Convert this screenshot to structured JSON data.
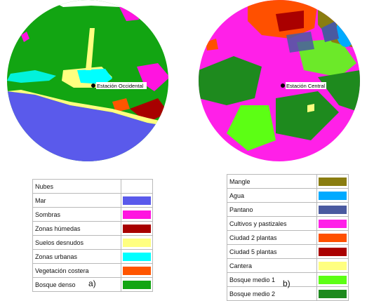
{
  "panel_a": {
    "caption": "a)",
    "station": "Estación Occidental",
    "legend": [
      {
        "label": "Nubes",
        "color": "#ffffff"
      },
      {
        "label": "Mar",
        "color": "#5a5aeb"
      },
      {
        "label": "Sombras",
        "color": "#ff14e0"
      },
      {
        "label": "Zonas húmedas",
        "color": "#a80000"
      },
      {
        "label": "Suelos desnudos",
        "color": "#ffff80"
      },
      {
        "label": "Zonas urbanas",
        "color": "#00ffff"
      },
      {
        "label": "Vegetación costera",
        "color": "#ff5500"
      },
      {
        "label": "Bosque denso",
        "color": "#12a512"
      }
    ]
  },
  "panel_b": {
    "caption": "b)",
    "station": "Estación Central",
    "legend": [
      {
        "label": "Mangle",
        "color": "#8a7d10"
      },
      {
        "label": "Agua",
        "color": "#00aaff"
      },
      {
        "label": "Pantano",
        "color": "#4a5aa0"
      },
      {
        "label": "Cultivos y pastizales",
        "color": "#ff20e8"
      },
      {
        "label": "Ciudad 2 plantas",
        "color": "#ff5000"
      },
      {
        "label": "Ciudad 5 plantas",
        "color": "#aa0000"
      },
      {
        "label": "Cantera",
        "color": "#ffff80"
      },
      {
        "label": "Bosque medio 1",
        "color": "#5cff14"
      },
      {
        "label": "Bosque medio 2",
        "color": "#1e8a1e"
      }
    ]
  }
}
